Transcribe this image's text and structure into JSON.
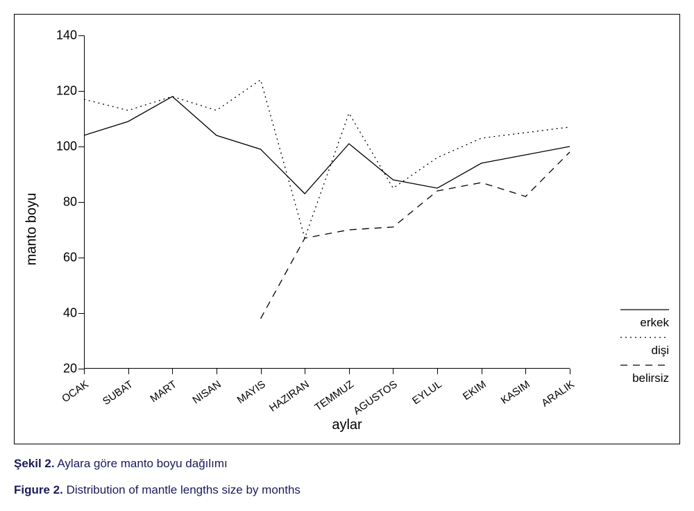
{
  "chart": {
    "type": "line",
    "ylabel": "manto boyu",
    "xlabel": "aylar",
    "label_fontsize": 20,
    "tick_fontsize": 18,
    "x_tick_fontsize": 15,
    "x_tick_rotation_deg": -35,
    "background_color": "#ffffff",
    "border_color": "#000000",
    "axis_color": "#000000",
    "text_color": "#000000",
    "ylim": [
      20,
      140
    ],
    "yticks": [
      20,
      40,
      60,
      80,
      100,
      120,
      140
    ],
    "categories": [
      "OCAK",
      "SUBAT",
      "MART",
      "NISAN",
      "MAYIS",
      "HAZIRAN",
      "TEMMUZ",
      "AGUSTOS",
      "EYLUL",
      "EKIM",
      "KASIM",
      "ARALIK"
    ],
    "line_width": 1.3,
    "series": [
      {
        "name": "erkek",
        "dash": "solid",
        "color": "#000000",
        "values": [
          104,
          109,
          118,
          104,
          99,
          83,
          101,
          88,
          85,
          94,
          97,
          100
        ],
        "x_index_start": 0
      },
      {
        "name": "dişi",
        "dash": "dot",
        "color": "#000000",
        "values": [
          117,
          113,
          118,
          113,
          124,
          67,
          112,
          85,
          96,
          103,
          105,
          107
        ],
        "x_index_start": 0
      },
      {
        "name": "belirsiz",
        "dash": "dash",
        "color": "#000000",
        "values": [
          38,
          67,
          70,
          71,
          84,
          87,
          82,
          98
        ],
        "x_index_start": 4
      }
    ],
    "legend": {
      "position": "right-bottom",
      "items": [
        {
          "label": "erkek",
          "dash": "solid",
          "color": "#000000"
        },
        {
          "label": "dişi",
          "dash": "dot",
          "color": "#000000"
        },
        {
          "label": "belirsiz",
          "dash": "dash",
          "color": "#000000"
        }
      ]
    }
  },
  "captions": {
    "tr_prefix": "Şekil 2.",
    "tr_text": " Aylara göre manto boyu dağılımı",
    "en_prefix": "Figure 2.",
    "en_text": " Distribution of mantle lengths size by months",
    "color": "#1a1a5c",
    "fontsize": 17
  }
}
